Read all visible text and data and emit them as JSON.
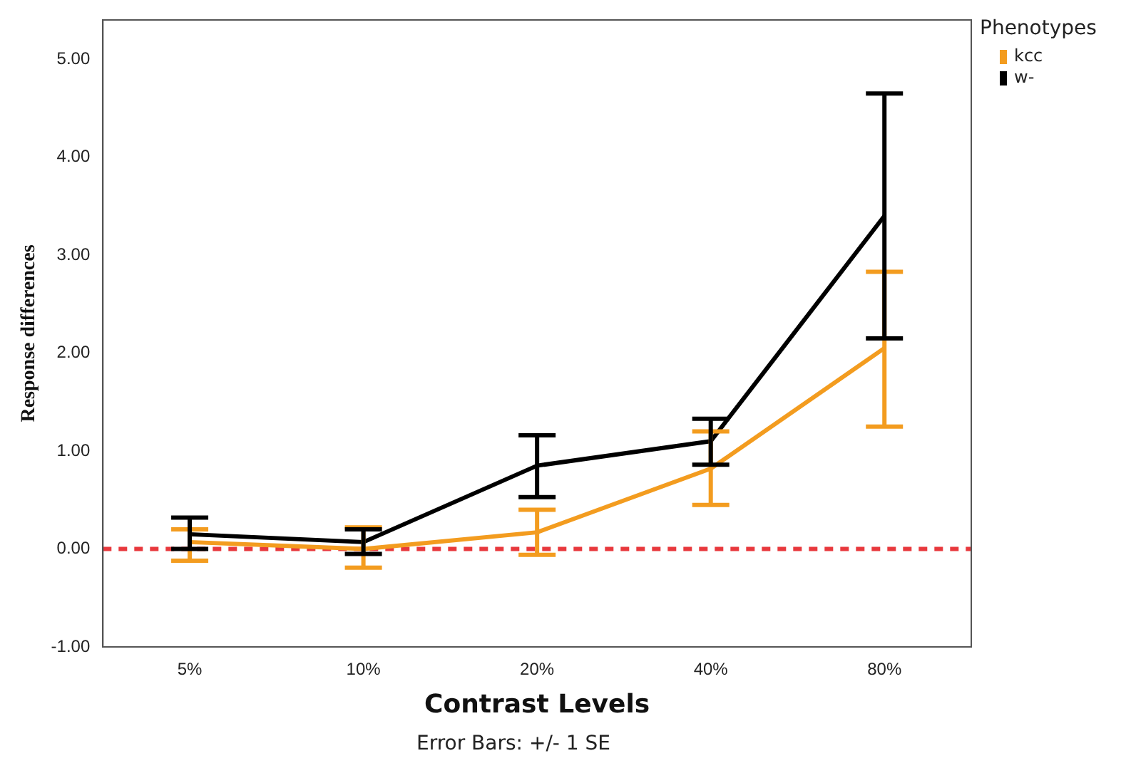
{
  "chart_data": {
    "type": "line",
    "xlabel": "Contrast Levels",
    "ylabel": "Response differences",
    "legend_title": "Phenotypes",
    "legend": "top right",
    "categories": [
      "5%",
      "10%",
      "20%",
      "40%",
      "80%"
    ],
    "series": [
      {
        "name": "kcc",
        "color": "#f39c1f",
        "values": [
          0.07,
          0.0,
          0.17,
          0.82,
          2.05
        ],
        "errors": [
          [
            -0.12,
            0.2
          ],
          [
            -0.19,
            0.22
          ],
          [
            -0.06,
            0.4
          ],
          [
            0.45,
            1.2
          ],
          [
            1.25,
            2.83
          ]
        ]
      },
      {
        "name": "w-",
        "color": "#000000",
        "values": [
          0.15,
          0.07,
          0.85,
          1.1,
          3.4
        ],
        "errors": [
          [
            0.0,
            0.32
          ],
          [
            -0.05,
            0.2
          ],
          [
            0.53,
            1.16
          ],
          [
            0.86,
            1.33
          ],
          [
            2.15,
            4.65
          ]
        ]
      }
    ],
    "ylim": [
      -1,
      5.4
    ],
    "yticks": [
      {
        "value": -1,
        "label": "-1.00"
      },
      {
        "value": 0,
        "label": "0.00"
      },
      {
        "value": 1,
        "label": "1.00"
      },
      {
        "value": 2,
        "label": "2.00"
      },
      {
        "value": 3,
        "label": "3.00"
      },
      {
        "value": 4,
        "label": "4.00"
      },
      {
        "value": 5,
        "label": "5.00"
      }
    ],
    "ref_lines": [
      {
        "axis": "y",
        "value": 0,
        "color": "#e8383d",
        "line_style": "dashed"
      }
    ],
    "grid": false,
    "marker": "none",
    "line_style": "solid",
    "annotations": [
      "Error Bars: +/- 1 SE"
    ]
  }
}
